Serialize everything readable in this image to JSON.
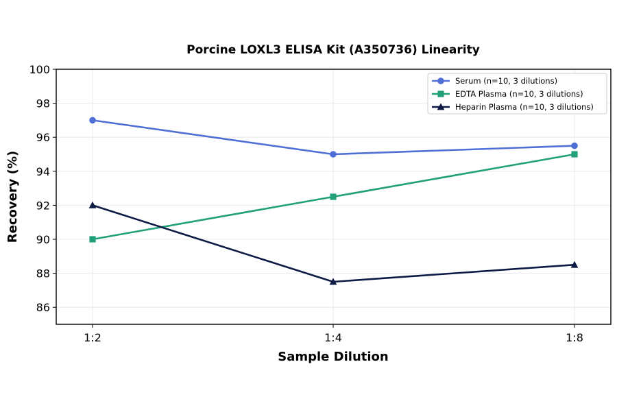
{
  "chart_data": {
    "type": "line",
    "title": "Porcine LOXL3 ELISA Kit (A350736) Linearity",
    "xlabel": "Sample Dilution",
    "ylabel": "Recovery (%)",
    "categories": [
      "1:2",
      "1:4",
      "1:8"
    ],
    "ylim": [
      85,
      100
    ],
    "yticks": [
      86,
      88,
      90,
      92,
      94,
      96,
      98,
      100
    ],
    "grid": true,
    "legend_position": "top-right",
    "series": [
      {
        "name": "Serum (n=10, 3 dilutions)",
        "values": [
          97,
          95,
          95.5
        ],
        "color": "#4f6fd6",
        "marker": "circle"
      },
      {
        "name": "EDTA Plasma (n=10, 3 dilutions)",
        "values": [
          90,
          92.5,
          95
        ],
        "color": "#21a07a",
        "marker": "square"
      },
      {
        "name": "Heparin Plasma (n=10, 3 dilutions)",
        "values": [
          92,
          87.5,
          88.5
        ],
        "color": "#0c1a45",
        "marker": "triangle"
      }
    ]
  }
}
